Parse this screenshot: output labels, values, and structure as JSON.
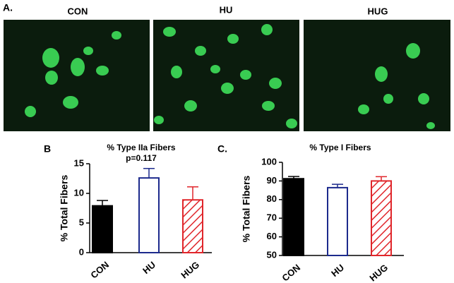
{
  "figure": {
    "label": "A.",
    "images": [
      {
        "label": "CON"
      },
      {
        "label": "HU"
      },
      {
        "label": "HUG"
      }
    ]
  },
  "chart_data": [
    {
      "type": "bar",
      "panel_label": "B",
      "title": "% Type IIa Fibers",
      "annotation": "p=0.117",
      "y_label": "% Total Fibers",
      "categories": [
        "CON",
        "HU",
        "HUG"
      ],
      "values": [
        7.9,
        12.6,
        8.9
      ],
      "errors": [
        0.9,
        1.6,
        2.2
      ],
      "colors": [
        "#000000",
        "#1c2a8c",
        "#e0262b"
      ],
      "fills": [
        "solid",
        "outline",
        "hatch"
      ],
      "ylim": [
        0,
        15
      ],
      "yticks": [
        0,
        5,
        10,
        15
      ]
    },
    {
      "type": "bar",
      "panel_label": "C.",
      "title": "% Type I Fibers",
      "y_label": "% Total Fibers",
      "categories": [
        "CON",
        "HU",
        "HUG"
      ],
      "values": [
        91.2,
        86.4,
        90.0
      ],
      "errors": [
        1.2,
        1.8,
        2.3
      ],
      "colors": [
        "#000000",
        "#1c2a8c",
        "#e0262b"
      ],
      "fills": [
        "solid",
        "outline",
        "hatch"
      ],
      "ylim": [
        50,
        100
      ],
      "yticks": [
        50,
        60,
        70,
        80,
        90,
        100
      ]
    }
  ]
}
